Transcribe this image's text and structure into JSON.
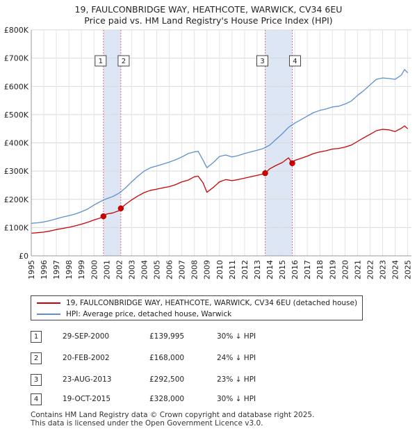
{
  "title": "19, FAULCONBRIDGE WAY, HEATHCOTE, WARWICK, CV34 6EU",
  "subtitle": "Price paid vs. HM Land Registry's House Price Index (HPI)",
  "colors": {
    "property": "#cc0000",
    "hpi": "#5b8fd0",
    "highlight": "#dde6f5",
    "vline": "#e06b8b"
  },
  "legend": [
    {
      "label": "19, FAULCONBRIDGE WAY, HEATHCOTE, WARWICK, CV34 6EU (detached house)",
      "color": "#cc0000"
    },
    {
      "label": "HPI: Average price, detached house, Warwick",
      "color": "#5b8fd0"
    }
  ],
  "sales": [
    {
      "num": "1",
      "date": "29-SEP-2000",
      "price": "£139,995",
      "hpi": "30% ↓ HPI",
      "year": 2000.75,
      "value": 139995
    },
    {
      "num": "2",
      "date": "20-FEB-2002",
      "price": "£168,000",
      "hpi": "24% ↓ HPI",
      "year": 2002.14,
      "value": 168000
    },
    {
      "num": "3",
      "date": "23-AUG-2013",
      "price": "£292,500",
      "hpi": "23% ↓ HPI",
      "year": 2013.64,
      "value": 292500
    },
    {
      "num": "4",
      "date": "19-OCT-2015",
      "price": "£328,000",
      "hpi": "30% ↓ HPI",
      "year": 2015.8,
      "value": 328000
    }
  ],
  "footer": [
    "Contains HM Land Registry data © Crown copyright and database right 2025.",
    "This data is licensed under the Open Government Licence v3.0."
  ],
  "chart_data": {
    "type": "line",
    "title": "19, FAULCONBRIDGE WAY, HEATHCOTE, WARWICK, CV34 6EU",
    "subtitle": "Price paid vs. HM Land Registry's House Price Index (HPI)",
    "xlabel": "",
    "ylabel": "",
    "xlim": [
      1995,
      2025.3
    ],
    "ylim": [
      0,
      800000
    ],
    "yticks": [
      {
        "value": 0,
        "label": "£0"
      },
      {
        "value": 100000,
        "label": "£100K"
      },
      {
        "value": 200000,
        "label": "£200K"
      },
      {
        "value": 300000,
        "label": "£300K"
      },
      {
        "value": 400000,
        "label": "£400K"
      },
      {
        "value": 500000,
        "label": "£500K"
      },
      {
        "value": 600000,
        "label": "£600K"
      },
      {
        "value": 700000,
        "label": "£700K"
      },
      {
        "value": 800000,
        "label": "£800K"
      }
    ],
    "xticks": [
      "1995",
      "1996",
      "1997",
      "1998",
      "1999",
      "2000",
      "2001",
      "2002",
      "2003",
      "2004",
      "2005",
      "2006",
      "2007",
      "2008",
      "2009",
      "2010",
      "2011",
      "2012",
      "2013",
      "2014",
      "2015",
      "2016",
      "2017",
      "2018",
      "2019",
      "2020",
      "2021",
      "2022",
      "2023",
      "2024",
      "2025"
    ],
    "grid": true,
    "highlight_ranges": [
      [
        2000.75,
        2002.14
      ],
      [
        2013.64,
        2015.8
      ]
    ],
    "series": [
      {
        "name": "HPI: Average price, detached house, Warwick",
        "color": "#5b8fd0",
        "x": [
          1995,
          1995.5,
          1996,
          1996.5,
          1997,
          1997.5,
          1998,
          1998.5,
          1999,
          1999.5,
          2000,
          2000.5,
          2001,
          2001.5,
          2002,
          2002.5,
          2003,
          2003.5,
          2004,
          2004.5,
          2005,
          2005.5,
          2006,
          2006.5,
          2007,
          2007.5,
          2008,
          2008.3,
          2008.7,
          2009,
          2009.5,
          2010,
          2010.5,
          2011,
          2011.5,
          2012,
          2012.5,
          2013,
          2013.5,
          2014,
          2014.5,
          2015,
          2015.5,
          2016,
          2016.5,
          2017,
          2017.5,
          2018,
          2018.5,
          2019,
          2019.5,
          2020,
          2020.5,
          2021,
          2021.5,
          2022,
          2022.5,
          2023,
          2023.5,
          2024,
          2024.5,
          2024.75,
          2025
        ],
        "values": [
          115000,
          117000,
          120000,
          125000,
          131000,
          137000,
          142000,
          148000,
          156000,
          166000,
          180000,
          192000,
          202000,
          210000,
          222000,
          240000,
          262000,
          282000,
          300000,
          312000,
          318000,
          325000,
          332000,
          340000,
          350000,
          362000,
          368000,
          370000,
          338000,
          312000,
          330000,
          352000,
          357000,
          350000,
          355000,
          362000,
          368000,
          374000,
          380000,
          392000,
          412000,
          432000,
          455000,
          470000,
          482000,
          495000,
          507000,
          515000,
          520000,
          527000,
          530000,
          537000,
          548000,
          568000,
          585000,
          605000,
          625000,
          630000,
          628000,
          625000,
          640000,
          660000,
          648000
        ]
      },
      {
        "name": "19, FAULCONBRIDGE WAY, HEATHCOTE, WARWICK, CV34 6EU (detached house)",
        "color": "#cc0000",
        "x": [
          1995,
          1995.5,
          1996,
          1996.5,
          1997,
          1997.5,
          1998,
          1998.5,
          1999,
          1999.5,
          2000,
          2000.5,
          2000.75,
          2001,
          2001.5,
          2002,
          2002.14,
          2002.5,
          2003,
          2003.5,
          2004,
          2004.5,
          2005,
          2005.5,
          2006,
          2006.5,
          2007,
          2007.5,
          2008,
          2008.3,
          2008.7,
          2009,
          2009.5,
          2010,
          2010.5,
          2011,
          2011.5,
          2012,
          2012.5,
          2013,
          2013.5,
          2013.64,
          2014,
          2014.5,
          2015,
          2015.5,
          2015.8,
          2016,
          2016.5,
          2017,
          2017.5,
          2018,
          2018.5,
          2019,
          2019.5,
          2020,
          2020.5,
          2021,
          2021.5,
          2022,
          2022.5,
          2023,
          2023.5,
          2024,
          2024.5,
          2024.75,
          2025
        ],
        "values": [
          80000,
          82000,
          84000,
          88000,
          93000,
          97000,
          101000,
          106000,
          112000,
          119000,
          127000,
          134000,
          139995,
          148000,
          152000,
          160000,
          168000,
          182000,
          198000,
          212000,
          224000,
          232000,
          236000,
          241000,
          245000,
          252000,
          262000,
          268000,
          280000,
          282000,
          258000,
          225000,
          242000,
          262000,
          270000,
          266000,
          270000,
          275000,
          280000,
          285000,
          290000,
          292500,
          308000,
          320000,
          330000,
          347000,
          328000,
          338000,
          345000,
          353000,
          362000,
          368000,
          372000,
          378000,
          380000,
          385000,
          392000,
          405000,
          418000,
          430000,
          443000,
          448000,
          446000,
          440000,
          452000,
          460000,
          450000
        ]
      }
    ],
    "sale_points": [
      {
        "label": "1",
        "x": 2000.75,
        "y": 139995
      },
      {
        "label": "2",
        "x": 2002.14,
        "y": 168000
      },
      {
        "label": "3",
        "x": 2013.64,
        "y": 292500
      },
      {
        "label": "4",
        "x": 2015.8,
        "y": 328000
      }
    ]
  }
}
